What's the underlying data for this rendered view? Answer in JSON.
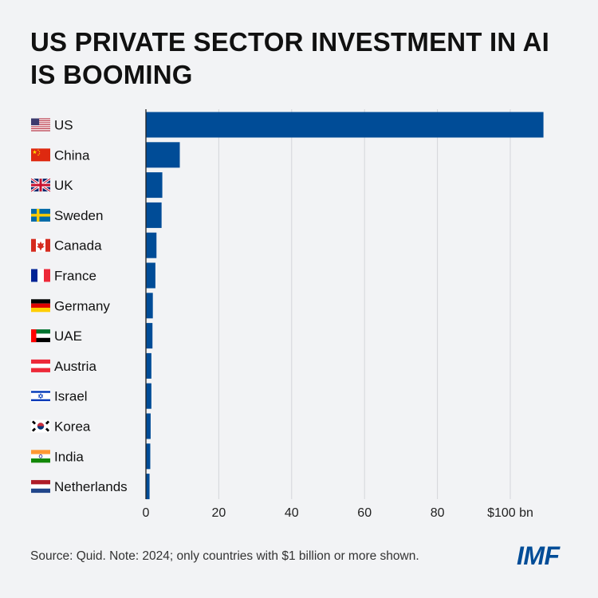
{
  "title": {
    "line1": "US PRIVATE SECTOR INVESTMENT IN AI",
    "line2": "IS BOOMING"
  },
  "chart_data": {
    "type": "bar",
    "orientation": "horizontal",
    "categories": [
      "US",
      "China",
      "UK",
      "Sweden",
      "Canada",
      "France",
      "Germany",
      "UAE",
      "Austria",
      "Israel",
      "Korea",
      "India",
      "Netherlands"
    ],
    "flag_icons": [
      "us-flag-icon",
      "china-flag-icon",
      "uk-flag-icon",
      "sweden-flag-icon",
      "canada-flag-icon",
      "france-flag-icon",
      "germany-flag-icon",
      "uae-flag-icon",
      "austria-flag-icon",
      "israel-flag-icon",
      "korea-flag-icon",
      "india-flag-icon",
      "netherlands-flag-icon"
    ],
    "values": [
      109.1,
      9.3,
      4.5,
      4.3,
      2.9,
      2.6,
      1.9,
      1.8,
      1.5,
      1.5,
      1.3,
      1.2,
      1.0
    ],
    "xlim": [
      0,
      110
    ],
    "ticks": [
      0,
      20,
      40,
      60,
      80,
      100
    ],
    "tick_labels": [
      "0",
      "20",
      "40",
      "60",
      "80",
      "$100 bn"
    ],
    "grid": true,
    "bar_color": "#004c97",
    "gridline_color": "#d4d6da",
    "axis_color": "#222222"
  },
  "footer": {
    "source": "Source: Quid. Note: 2024; only countries with $1 billion or more shown.",
    "logo": "IMF"
  }
}
